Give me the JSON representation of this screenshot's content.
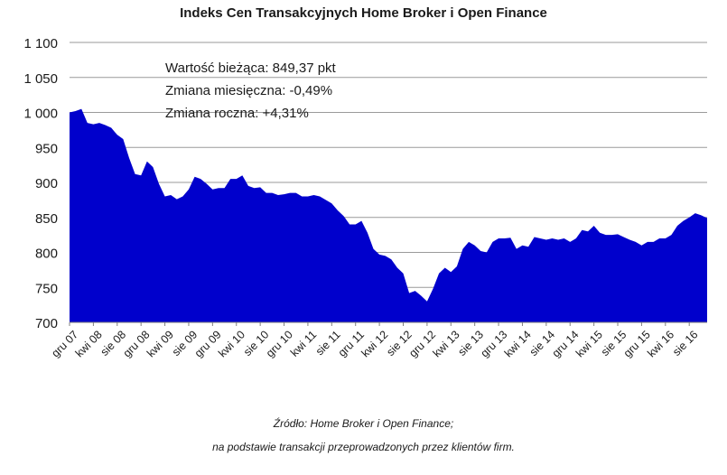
{
  "chart_data": {
    "type": "area",
    "title": "Indeks Cen Transakcyjnych Home Broker i Open Finance",
    "xlabel": "",
    "ylabel": "",
    "ylim": [
      700,
      1100
    ],
    "yticks": [
      "1 100",
      "1 050",
      "1 000",
      "950",
      "900",
      "850",
      "800",
      "750",
      "700"
    ],
    "ytick_values": [
      1100,
      1050,
      1000,
      950,
      900,
      850,
      800,
      750,
      700
    ],
    "grid": true,
    "fill_color": "#0000cc",
    "x_tick_labels": [
      {
        "label": "gru 07",
        "index": 0
      },
      {
        "label": "kwi 08",
        "index": 4
      },
      {
        "label": "sie 08",
        "index": 8
      },
      {
        "label": "gru 08",
        "index": 12
      },
      {
        "label": "kwi 09",
        "index": 16
      },
      {
        "label": "sie 09",
        "index": 20
      },
      {
        "label": "gru 09",
        "index": 24
      },
      {
        "label": "kwi 10",
        "index": 28
      },
      {
        "label": "sie 10",
        "index": 32
      },
      {
        "label": "gru 10",
        "index": 36
      },
      {
        "label": "kwi 11",
        "index": 40
      },
      {
        "label": "sie 11",
        "index": 44
      },
      {
        "label": "gru 11",
        "index": 48
      },
      {
        "label": "kwi 12",
        "index": 52
      },
      {
        "label": "sie 12",
        "index": 56
      },
      {
        "label": "gru 12",
        "index": 60
      },
      {
        "label": "kwi 13",
        "index": 64
      },
      {
        "label": "sie 13",
        "index": 68
      },
      {
        "label": "gru 13",
        "index": 72
      },
      {
        "label": "kwi 14",
        "index": 76
      },
      {
        "label": "sie 14",
        "index": 80
      },
      {
        "label": "gru 14",
        "index": 84
      },
      {
        "label": "kwi 15",
        "index": 88
      },
      {
        "label": "sie 15",
        "index": 92
      },
      {
        "label": "gru 15",
        "index": 96
      },
      {
        "label": "kwi 16",
        "index": 100
      },
      {
        "label": "sie 16",
        "index": 104
      }
    ],
    "values": [
      1000,
      1002,
      1005,
      985,
      983,
      985,
      982,
      978,
      968,
      962,
      935,
      912,
      910,
      930,
      922,
      898,
      880,
      882,
      876,
      880,
      890,
      908,
      905,
      898,
      890,
      892,
      892,
      905,
      905,
      910,
      895,
      892,
      893,
      885,
      885,
      882,
      883,
      885,
      885,
      880,
      880,
      882,
      880,
      875,
      870,
      860,
      852,
      840,
      840,
      845,
      828,
      805,
      797,
      795,
      790,
      778,
      770,
      742,
      745,
      738,
      730,
      748,
      770,
      778,
      772,
      780,
      805,
      815,
      810,
      802,
      800,
      815,
      820,
      820,
      821,
      805,
      810,
      808,
      822,
      820,
      818,
      820,
      818,
      820,
      815,
      820,
      832,
      830,
      838,
      828,
      825,
      825,
      826,
      822,
      818,
      815,
      810,
      815,
      815,
      820,
      820,
      825,
      838,
      845,
      850,
      856,
      853,
      849
    ]
  },
  "annotation": {
    "line1": "Wartość bieżąca: 849,37 pkt",
    "line2": "Zmiana miesięczna: -0,49%",
    "line3": "Zmiana roczna: +4,31%"
  },
  "source": {
    "line1": "Źródło: Home Broker i Open Finance;",
    "line2": "na podstawie transakcji przeprowadzonych przez klientów firm."
  }
}
